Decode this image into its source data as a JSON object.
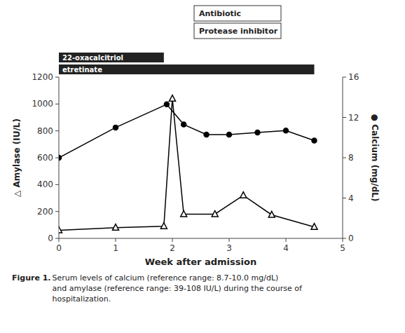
{
  "chart_data": {
    "type": "line",
    "series": [
      {
        "x": [
          0,
          1,
          1.85,
          2.0,
          2.2,
          2.75,
          3.25,
          3.75,
          4.5
        ],
        "values": [
          60,
          80,
          90,
          1040,
          180,
          180,
          320,
          175,
          85
        ],
        "color": "black",
        "marker": "open-triangle"
      },
      {
        "x": [
          0,
          1,
          1.9,
          2.2,
          2.6,
          3.0,
          3.5,
          4.0,
          4.5
        ],
        "values": [
          8.0,
          11.0,
          13.3,
          11.3,
          10.3,
          10.3,
          10.5,
          10.7,
          9.7
        ],
        "color": "black",
        "marker": "circle",
        "axis": "y2"
      }
    ],
    "xlim": [
      0,
      5
    ],
    "xticks": [
      0,
      1,
      2,
      3,
      4,
      5
    ],
    "ylim": [
      0,
      1200
    ],
    "yticks": [
      0,
      200,
      400,
      600,
      800,
      1000,
      1200
    ],
    "y2lim": [
      0,
      16
    ],
    "y2ticks": [
      0,
      4,
      8,
      12,
      16
    ],
    "xlabel": "Week after admission",
    "ylabel": "△  Amylase (IU/L)",
    "y2label": "●  Calcium (mg/dL)",
    "grid": false,
    "treatment_bars": [
      {
        "label": "22-oxacalcitriol",
        "x_start": 0,
        "x_end": 1.85
      },
      {
        "label": "etretinate",
        "x_start": 0,
        "x_end": 4.5
      }
    ],
    "annotations": [
      "Antibiotic",
      "Protease inhibitor"
    ],
    "caption_bold": "Figure 1.",
    "caption": " Serum levels of calcium (reference range: 8.7-10.0 mg/dL)\nand amylase (reference range: 39-108 IU/L) during the course of\nhospitalization."
  }
}
